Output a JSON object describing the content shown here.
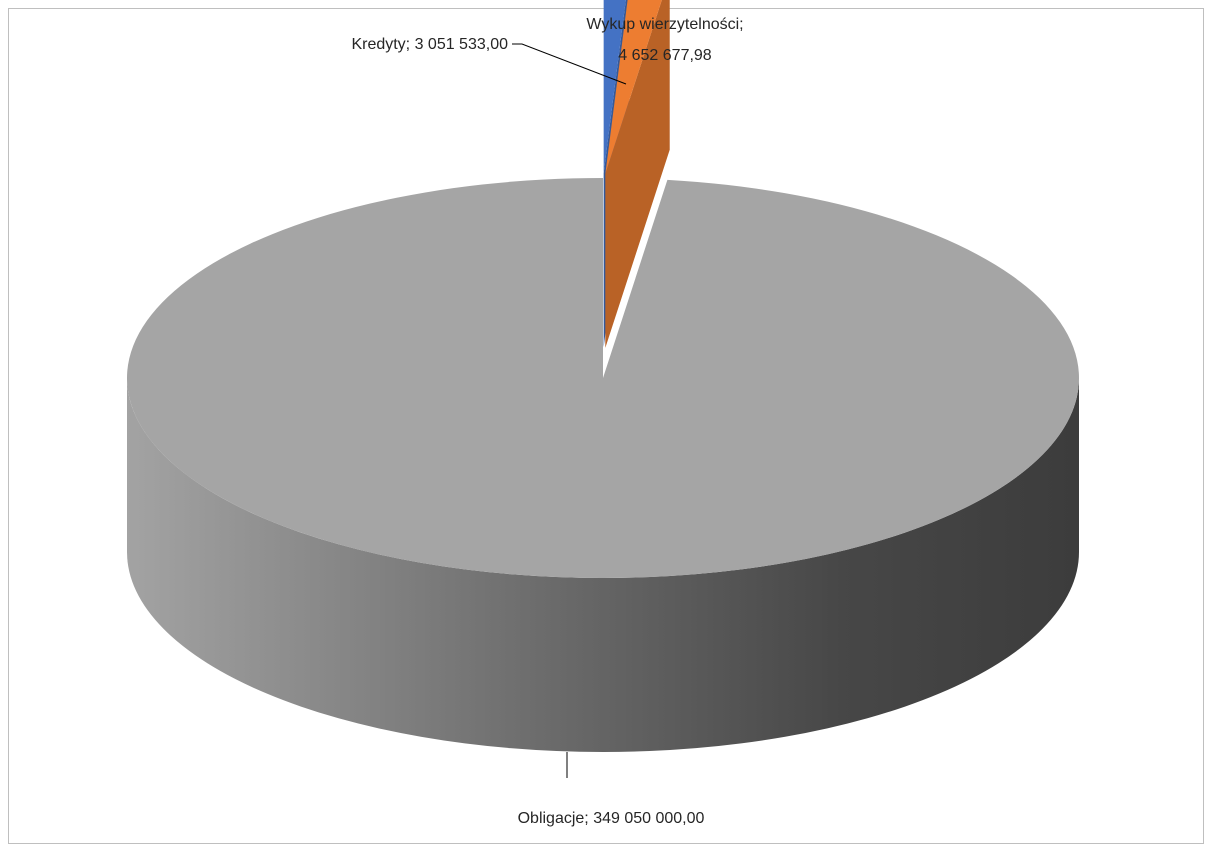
{
  "chart_data": {
    "type": "pie",
    "style": "3d-exploded",
    "slices": [
      {
        "label": "Kredyty",
        "value": 3051533.0,
        "value_text": "3 051 533,00",
        "color": "#4472c4",
        "exploded": true
      },
      {
        "label": "Wykup wierzytelności",
        "value": 4652677.98,
        "value_text": "4 652 677,98",
        "color": "#ed7d31",
        "exploded": true
      },
      {
        "label": "Obligacje",
        "value": 349050000.0,
        "value_text": "349 050 000,00",
        "color": "#a5a5a5",
        "exploded": false
      }
    ],
    "data_labels": {
      "kredyty": "Kredyty; 3 051 533,00",
      "wykup_line1": "Wykup wierzytelności;",
      "wykup_line2": "4 652 677,98",
      "obligacje": "Obligacje; 349 050 000,00"
    },
    "legend": "none",
    "title": ""
  }
}
